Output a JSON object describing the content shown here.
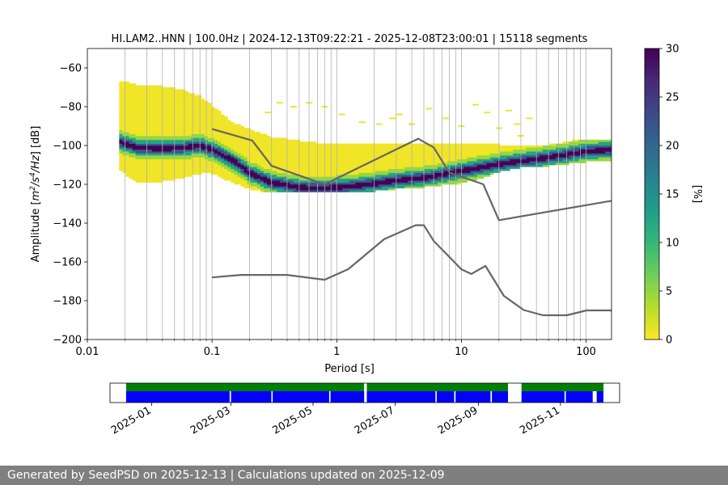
{
  "footer": {
    "text": "Generated by SeedPSD on 2025-12-13 | Calculations updated on 2025-12-09"
  },
  "colors": {
    "noise_model": "#666666",
    "availability_top": "#008000",
    "availability_bottom": "#0000ff",
    "grid": "#b0b0b0",
    "background": "#ffffff",
    "colormap": [
      "#fde725",
      "#b5de2b",
      "#6ece58",
      "#35b779",
      "#1f9e89",
      "#26828e",
      "#31688e",
      "#3e4989",
      "#482878",
      "#440154"
    ]
  },
  "chart_data": [
    {
      "type": "heatmap",
      "title": "HI.LAM2..HNN | 100.0Hz | 2024-12-13T09:22:21 - 2025-12-08T23:00:01 | 15118 segments",
      "xlabel": "Period [s]",
      "ylabel_parts": {
        "prefix": "Amplitude [",
        "m": "m",
        "m_exp": "2",
        "mid": "/s",
        "s_exp": "4",
        "suffix_italic": "/Hz",
        "suffix": "] [dB]"
      },
      "x_scale": "log",
      "xlim": [
        0.01,
        160
      ],
      "ylim": [
        -200,
        -50
      ],
      "x_ticks": [
        {
          "value": 0.01,
          "label": "0.01"
        },
        {
          "value": 0.1,
          "label": "0.1"
        },
        {
          "value": 1,
          "label": "1"
        },
        {
          "value": 10,
          "label": "10"
        },
        {
          "value": 100,
          "label": "100"
        }
      ],
      "y_ticks": [
        {
          "value": -60,
          "label": "−60"
        },
        {
          "value": -80,
          "label": "−80"
        },
        {
          "value": -100,
          "label": "−100"
        },
        {
          "value": -120,
          "label": "−120"
        },
        {
          "value": -140,
          "label": "−140"
        },
        {
          "value": -160,
          "label": "−160"
        },
        {
          "value": -180,
          "label": "−180"
        },
        {
          "value": -200,
          "label": "−200"
        }
      ],
      "period_grid": [
        0.02,
        0.03,
        0.04,
        0.05,
        0.06,
        0.07,
        0.08,
        0.09,
        0.1,
        0.2,
        0.3,
        0.4,
        0.5,
        0.6,
        0.7,
        0.8,
        0.9,
        1,
        2,
        3,
        4,
        5,
        6,
        7,
        8,
        9,
        10,
        20,
        30,
        40,
        50,
        60,
        70,
        80,
        90,
        100
      ],
      "grid": true,
      "colorbar": {
        "label": "[%]",
        "range": [
          0,
          30
        ],
        "ticks": [
          {
            "value": 0,
            "label": "0"
          },
          {
            "value": 5,
            "label": "5"
          },
          {
            "value": 10,
            "label": "10"
          },
          {
            "value": 15,
            "label": "15"
          },
          {
            "value": 20,
            "label": "20"
          },
          {
            "value": 25,
            "label": "25"
          },
          {
            "value": 30,
            "label": "30"
          }
        ]
      },
      "psd_mode": {
        "periods": [
          0.018,
          0.025,
          0.04,
          0.06,
          0.08,
          0.1,
          0.15,
          0.2,
          0.3,
          0.5,
          0.7,
          1,
          1.5,
          2,
          3,
          5,
          7,
          10,
          15,
          20,
          30,
          50,
          100,
          160
        ],
        "db": [
          -98,
          -101,
          -101.5,
          -101,
          -100,
          -102,
          -108,
          -114,
          -119,
          -121.5,
          -122,
          -121.5,
          -120.5,
          -119.5,
          -118,
          -116.5,
          -115,
          -113,
          -111,
          -109.5,
          -108,
          -106,
          -103,
          -102
        ]
      },
      "psd_envelope": {
        "periods": [
          0.018,
          0.025,
          0.04,
          0.06,
          0.08,
          0.1,
          0.15,
          0.2,
          0.3,
          0.5,
          0.7,
          1,
          1.5,
          2,
          3,
          5,
          7,
          10,
          15,
          20,
          30,
          50,
          100,
          160
        ],
        "upper_db": [
          -67,
          -69,
          -70,
          -72,
          -75,
          -80,
          -89,
          -92,
          -96,
          -98,
          -99,
          -99,
          -99,
          -99,
          -99,
          -99,
          -99,
          -99,
          -99,
          -100,
          -100,
          -100,
          -97,
          -97
        ],
        "lower_db": [
          -112,
          -119,
          -118,
          -116,
          -114,
          -114,
          -119,
          -122,
          -124,
          -124,
          -124,
          -124,
          -124,
          -123,
          -122,
          -121,
          -120,
          -119,
          -116,
          -113,
          -111,
          -110,
          -108,
          -107
        ]
      },
      "psd_outliers": {
        "periods": [
          0.28,
          0.35,
          0.45,
          0.6,
          0.8,
          1.1,
          1.6,
          2.2,
          2.8,
          3.2,
          4,
          5.5,
          7.5,
          10,
          13,
          16,
          20,
          24,
          28,
          30,
          35
        ],
        "db": [
          -83,
          -78,
          -80,
          -78,
          -80,
          -84,
          -88,
          -89,
          -86,
          -84,
          -89,
          -81,
          -86,
          -90,
          -79,
          -83,
          -91,
          -82,
          -89,
          -95,
          -86
        ]
      },
      "series": [
        {
          "periods": [
            0.1,
            0.21,
            0.3,
            0.8,
            4.5,
            6,
            8,
            15,
            20,
            160
          ],
          "db": [
            -91.5,
            -97.4,
            -110.5,
            -120,
            -96.5,
            -101,
            -114,
            -120,
            -138.5,
            -128.5
          ]
        },
        {
          "periods": [
            0.1,
            0.17,
            0.4,
            0.8,
            1.24,
            2.4,
            4.3,
            5,
            6,
            10,
            12,
            15.6,
            21.9,
            31.6,
            45,
            70,
            101,
            154,
            178
          ],
          "db": [
            -168,
            -166.7,
            -166.7,
            -169.2,
            -163.7,
            -148.3,
            -141.1,
            -141.1,
            -149.2,
            -163.8,
            -166.2,
            -162.1,
            -177.5,
            -184.8,
            -187.5,
            -187.5,
            -185,
            -185,
            -185.2
          ]
        }
      ]
    },
    {
      "type": "bar",
      "x_ticks": [
        "2025-01",
        "2025-03",
        "2025-05",
        "2025-07",
        "2025-09",
        "2025-11"
      ],
      "x_range": [
        "2024-12-01",
        "2025-12-15"
      ],
      "segments_top": [
        [
          "2024-12-13",
          "2025-06-08"
        ],
        [
          "2025-06-10",
          "2025-09-23"
        ],
        [
          "2025-10-03",
          "2025-12-03"
        ]
      ],
      "segments_bottom": [
        [
          "2024-12-13",
          "2025-02-28"
        ],
        [
          "2025-03-01",
          "2025-03-31"
        ],
        [
          "2025-04-01",
          "2025-05-13"
        ],
        [
          "2025-05-14",
          "2025-06-08"
        ],
        [
          "2025-06-10",
          "2025-07-31"
        ],
        [
          "2025-08-01",
          "2025-08-14"
        ],
        [
          "2025-08-15",
          "2025-09-10"
        ],
        [
          "2025-09-11",
          "2025-09-23"
        ],
        [
          "2025-10-03",
          "2025-11-04"
        ],
        [
          "2025-11-05",
          "2025-11-25"
        ],
        [
          "2025-11-28",
          "2025-12-03"
        ]
      ]
    }
  ]
}
